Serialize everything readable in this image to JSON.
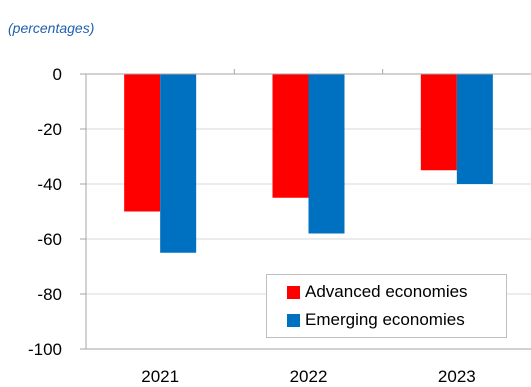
{
  "subtitle": "(percentages)",
  "colors": {
    "advanced": "#ff0000",
    "emerging": "#0070c0",
    "grid": "#d9d9d9",
    "axis": "#a6a6a6"
  },
  "chart_data": {
    "type": "bar",
    "title": "",
    "subtitle": "(percentages)",
    "xlabel": "",
    "ylabel": "",
    "categories": [
      "2021",
      "2022",
      "2023"
    ],
    "series": [
      {
        "name": "Advanced economies",
        "values": [
          -50,
          -45,
          -35
        ]
      },
      {
        "name": "Emerging economies",
        "values": [
          -65,
          -58,
          -40
        ]
      }
    ],
    "ylim": [
      -100,
      0
    ],
    "yticks": [
      0,
      -20,
      -40,
      -60,
      -80,
      -100
    ],
    "grid": true,
    "legend": "bottom-right"
  }
}
